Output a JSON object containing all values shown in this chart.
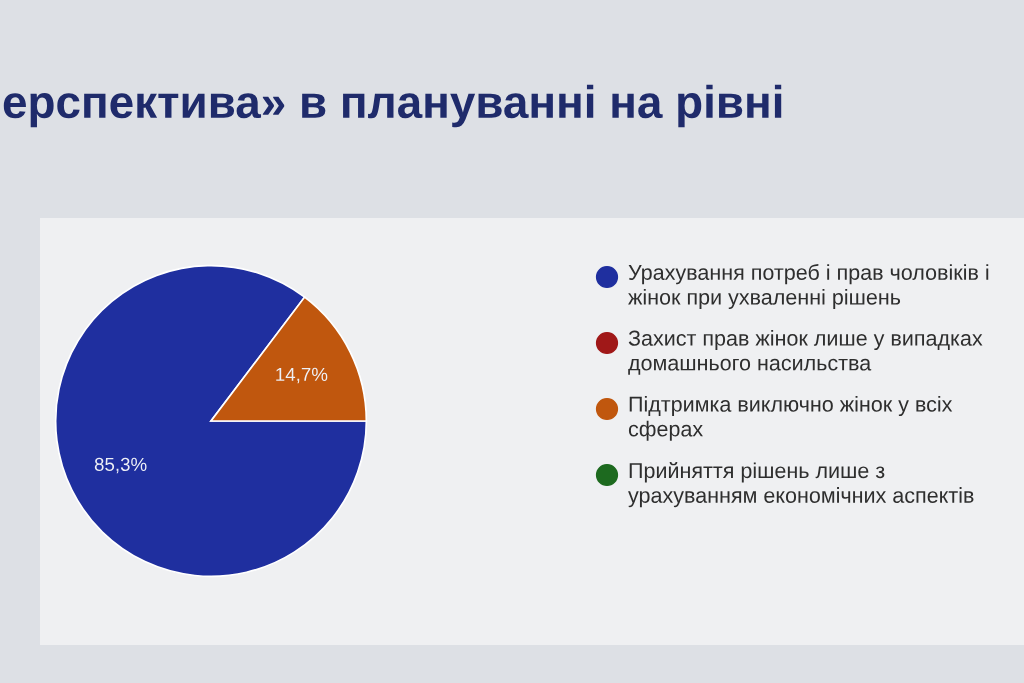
{
  "chart_data": {
    "type": "pie",
    "title": "ерспектива» в плануванні на рівні",
    "categories": [
      "Урахування потреб і прав чоловіків і жінок при ухваленні рішень",
      "Захист прав жінок лише у випадках домашнього насильства",
      "Підтримка виключно жінок у всіх сферах",
      "Прийняття рішень лише з урахуванням економічних аспектів"
    ],
    "values": [
      85.3,
      0,
      14.7,
      0
    ],
    "colors": [
      "#1f2f9f",
      "#a01818",
      "#c0570e",
      "#1d6a1f"
    ],
    "value_labels": [
      "85,3%",
      null,
      "14,7%",
      null
    ],
    "legend": "right"
  }
}
